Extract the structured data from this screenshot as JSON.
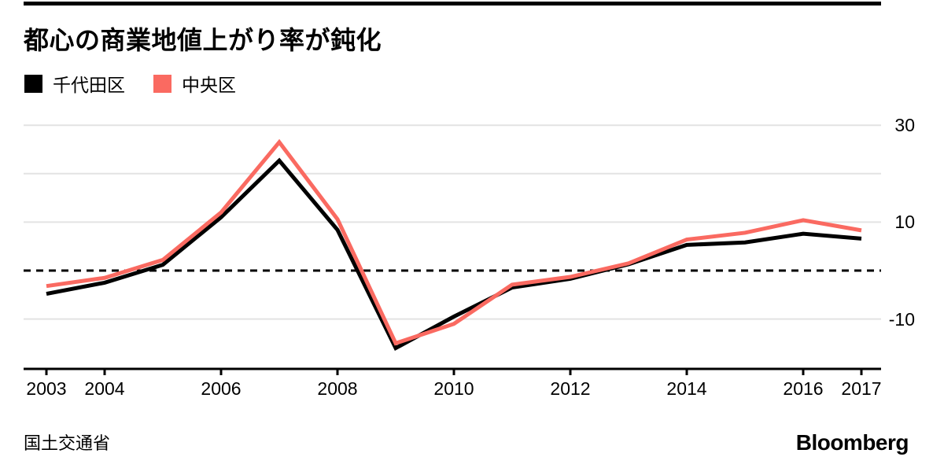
{
  "title": "都心の商業地値上がり率が鈍化",
  "source": "国土交通省",
  "brand": "Bloomberg",
  "colors": {
    "series_black": "#000000",
    "series_pink": "#fa6a61",
    "gridline": "#e3e3e3",
    "axis": "#000000"
  },
  "chart_data": {
    "type": "line",
    "title": "都心の商業地値上がり率が鈍化",
    "x": [
      2003,
      2004,
      2005,
      2006,
      2007,
      2008,
      2009,
      2010,
      2011,
      2012,
      2013,
      2014,
      2015,
      2016,
      2017
    ],
    "series": [
      {
        "name": "千代田区",
        "color": "#000000",
        "values": [
          -4.8,
          -2.5,
          1.2,
          11.0,
          22.7,
          8.4,
          -16.0,
          -9.5,
          -3.5,
          -1.7,
          1.3,
          5.3,
          5.8,
          7.6,
          6.6
        ]
      },
      {
        "name": "中央区",
        "color": "#fa6a61",
        "values": [
          -3.2,
          -1.5,
          2.2,
          12.0,
          26.5,
          10.6,
          -15.0,
          -11.0,
          -2.9,
          -1.3,
          1.5,
          6.4,
          7.8,
          10.4,
          8.3
        ]
      }
    ],
    "x_ticks": [
      2003,
      2004,
      2006,
      2008,
      2010,
      2012,
      2014,
      2016,
      2017
    ],
    "y_ticks": [
      30,
      10,
      -10
    ],
    "gridline_values": [
      30,
      20,
      10,
      -10
    ],
    "zero_line_value": 0,
    "ylim": [
      -20.5,
      30
    ],
    "xlabel": "",
    "ylabel": "",
    "grid": "horizontal",
    "legend_position": "top-left",
    "units": "percent"
  }
}
